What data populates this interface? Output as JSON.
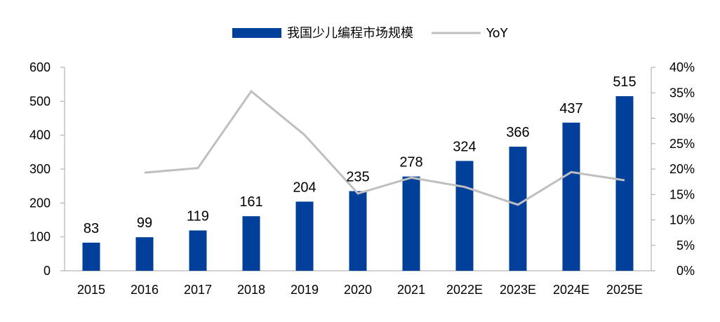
{
  "chart_data": {
    "type": "bar",
    "categories": [
      "2015",
      "2016",
      "2017",
      "2018",
      "2019",
      "2020",
      "2021",
      "2022E",
      "2023E",
      "2024E",
      "2025E"
    ],
    "series": [
      {
        "name": "我国少儿编程市场规模",
        "type": "bar",
        "axis": "left",
        "color": "#003f9a",
        "values": [
          83,
          99,
          119,
          161,
          204,
          235,
          278,
          324,
          366,
          437,
          515
        ],
        "data_labels": [
          "83",
          "99",
          "119",
          "161",
          "204",
          "235",
          "278",
          "324",
          "366",
          "437",
          "515"
        ]
      },
      {
        "name": "YoY",
        "type": "line",
        "axis": "right",
        "color": "#bfbfbf",
        "values": [
          null,
          0.193,
          0.202,
          0.353,
          0.267,
          0.152,
          0.183,
          0.165,
          0.13,
          0.194,
          0.178
        ]
      }
    ],
    "y_left": {
      "min": 0,
      "max": 600,
      "ticks": [
        "0",
        "100",
        "200",
        "300",
        "400",
        "500",
        "600"
      ]
    },
    "y_right": {
      "min": 0,
      "max": 0.4,
      "ticks": [
        "0%",
        "5%",
        "10%",
        "15%",
        "20%",
        "25%",
        "30%",
        "35%",
        "40%"
      ]
    },
    "legend_position": "top-center",
    "grid": false
  }
}
